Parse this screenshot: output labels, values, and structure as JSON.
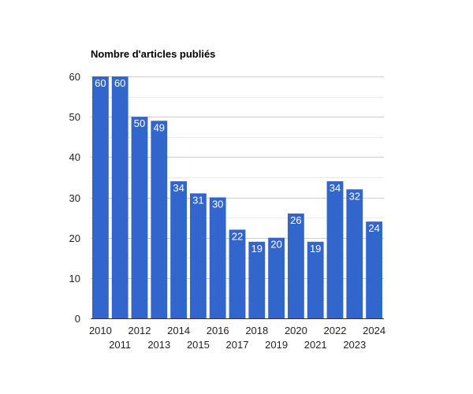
{
  "chart_data": {
    "type": "bar",
    "title": "Nombre d'articles publiés",
    "xlabel": "",
    "ylabel": "",
    "categories": [
      "2010",
      "2011",
      "2012",
      "2013",
      "2014",
      "2015",
      "2016",
      "2017",
      "2018",
      "2019",
      "2020",
      "2021",
      "2022",
      "2023",
      "2024"
    ],
    "values": [
      60,
      60,
      50,
      49,
      34,
      31,
      30,
      22,
      19,
      20,
      26,
      19,
      34,
      32,
      24
    ],
    "ylim": [
      0,
      60
    ],
    "yticks": [
      0,
      10,
      20,
      30,
      40,
      50,
      60
    ],
    "grid": true,
    "data_labels": true,
    "bar_color": "#3366cc",
    "gridline_color": "#cccccc",
    "minor_gridline_color": "#ebebeb"
  }
}
